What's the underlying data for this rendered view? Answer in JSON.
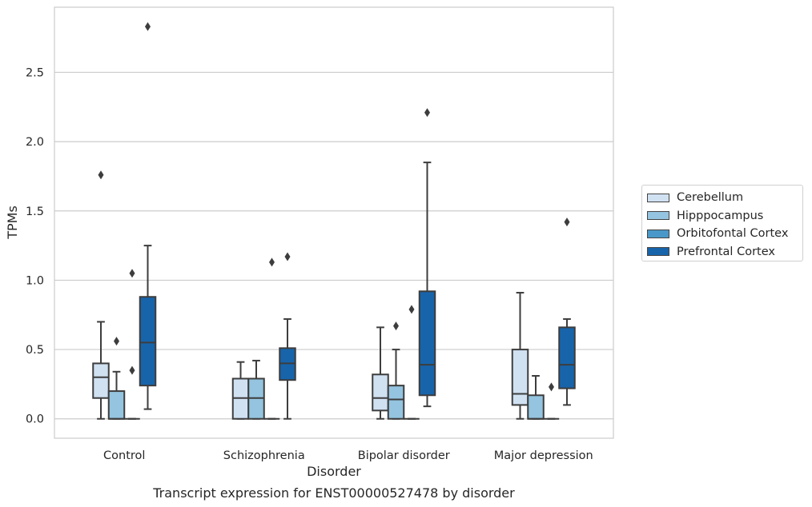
{
  "chart_data": {
    "type": "box",
    "ylabel": "TPMs",
    "xlabel": "Disorder",
    "caption": "Transcript expression for ENST00000527478 by disorder",
    "ylim": [
      -0.14,
      2.97
    ],
    "yticks": [
      0.0,
      0.5,
      1.0,
      1.5,
      2.0,
      2.5
    ],
    "ytick_labels": [
      "0.0",
      "0.5",
      "1.0",
      "1.5",
      "2.0",
      "2.5"
    ],
    "grid": "horizontal",
    "legend_position": "right",
    "categories": [
      "Control",
      "Schizophrenia",
      "Bipolar disorder",
      "Major depression"
    ],
    "series": [
      {
        "name": "Cerebellum",
        "color": "#d0e1f2",
        "boxes": [
          {
            "min": 0.0,
            "q1": 0.15,
            "median": 0.3,
            "q3": 0.4,
            "max": 0.7,
            "outliers": [
              1.76
            ]
          },
          {
            "min": 0.0,
            "q1": 0.0,
            "median": 0.15,
            "q3": 0.29,
            "max": 0.41,
            "outliers": []
          },
          {
            "min": 0.0,
            "q1": 0.06,
            "median": 0.15,
            "q3": 0.32,
            "max": 0.66,
            "outliers": []
          },
          {
            "min": 0.0,
            "q1": 0.1,
            "median": 0.18,
            "q3": 0.5,
            "max": 0.91,
            "outliers": []
          }
        ]
      },
      {
        "name": "Hipppocampus",
        "color": "#94c4df",
        "boxes": [
          {
            "min": 0.0,
            "q1": 0.0,
            "median": 0.0,
            "q3": 0.2,
            "max": 0.34,
            "outliers": [
              0.56
            ]
          },
          {
            "min": 0.0,
            "q1": 0.0,
            "median": 0.15,
            "q3": 0.29,
            "max": 0.42,
            "outliers": []
          },
          {
            "min": 0.0,
            "q1": 0.0,
            "median": 0.14,
            "q3": 0.24,
            "max": 0.5,
            "outliers": [
              0.67
            ]
          },
          {
            "min": 0.0,
            "q1": 0.0,
            "median": 0.0,
            "q3": 0.17,
            "max": 0.31,
            "outliers": []
          }
        ]
      },
      {
        "name": "Orbitofontal Cortex",
        "color": "#4a98c9",
        "boxes": [
          {
            "min": 0.0,
            "q1": 0.0,
            "median": 0.0,
            "q3": 0.0,
            "max": 0.0,
            "outliers": [
              0.35,
              1.05
            ]
          },
          {
            "min": 0.0,
            "q1": 0.0,
            "median": 0.0,
            "q3": 0.0,
            "max": 0.0,
            "outliers": [
              1.13
            ]
          },
          {
            "min": 0.0,
            "q1": 0.0,
            "median": 0.0,
            "q3": 0.0,
            "max": 0.0,
            "outliers": [
              0.79
            ]
          },
          {
            "min": 0.0,
            "q1": 0.0,
            "median": 0.0,
            "q3": 0.0,
            "max": 0.0,
            "outliers": [
              0.23
            ]
          }
        ]
      },
      {
        "name": "Prefrontal Cortex",
        "color": "#1764ab",
        "boxes": [
          {
            "min": 0.07,
            "q1": 0.24,
            "median": 0.55,
            "q3": 0.88,
            "max": 1.25,
            "outliers": [
              2.83
            ]
          },
          {
            "min": 0.0,
            "q1": 0.28,
            "median": 0.4,
            "q3": 0.51,
            "max": 0.72,
            "outliers": [
              1.17
            ]
          },
          {
            "min": 0.09,
            "q1": 0.17,
            "median": 0.39,
            "q3": 0.92,
            "max": 1.85,
            "outliers": [
              2.21
            ]
          },
          {
            "min": 0.1,
            "q1": 0.22,
            "median": 0.39,
            "q3": 0.66,
            "max": 0.72,
            "outliers": [
              1.42
            ]
          }
        ]
      }
    ]
  }
}
